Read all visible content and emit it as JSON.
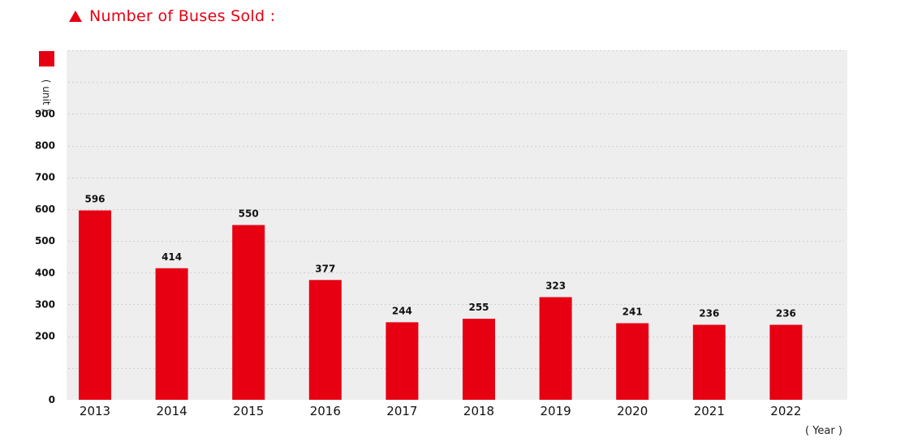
{
  "colors": {
    "accent": "#e60012",
    "plot_bg": "#eeeeee",
    "grid": "#cfcfcf"
  },
  "header": {
    "icon": "triangle-up-icon"
  },
  "chart_data": {
    "type": "bar",
    "title": "Number of Buses Sold :",
    "ylabel": "( unit )",
    "xlabel": "( Year )",
    "categories": [
      "2013",
      "2014",
      "2015",
      "2016",
      "2017",
      "2018",
      "2019",
      "2020",
      "2021",
      "2022"
    ],
    "values": [
      596,
      414,
      550,
      377,
      244,
      255,
      323,
      241,
      236,
      236
    ],
    "data_labels": [
      "596",
      "414",
      "550",
      "377",
      "244",
      "255",
      "323",
      "241",
      "236",
      "236"
    ],
    "yticks": [
      0,
      200,
      300,
      400,
      500,
      600,
      700,
      800,
      900
    ],
    "ylim": [
      0,
      1100
    ],
    "grid": true,
    "legend": "top-left"
  }
}
